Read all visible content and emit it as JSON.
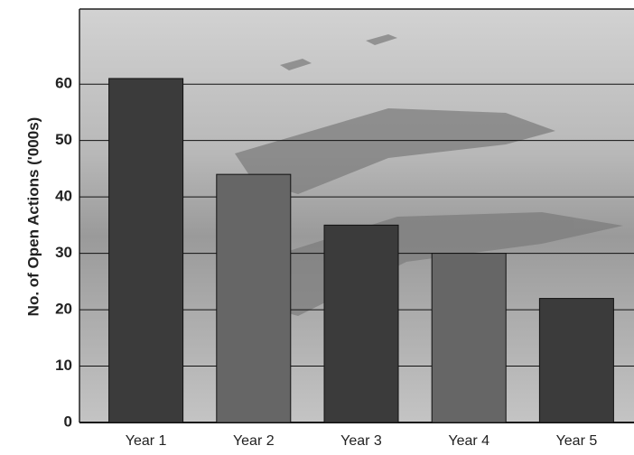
{
  "chart_data": {
    "type": "bar",
    "y_label": "No. of Open Actions ('000s)",
    "categories": [
      "Year 1",
      "Year 2",
      "Year 3",
      "Year 4",
      "Year 5"
    ],
    "values": [
      61,
      44,
      35,
      30,
      22
    ],
    "colors": [
      "#3b3b3b",
      "#666666",
      "#3b3b3b",
      "#666666",
      "#3b3b3b"
    ],
    "ylim": [
      0,
      73
    ],
    "yticks": [
      0,
      10,
      20,
      30,
      40,
      50,
      60
    ],
    "grid": true
  }
}
